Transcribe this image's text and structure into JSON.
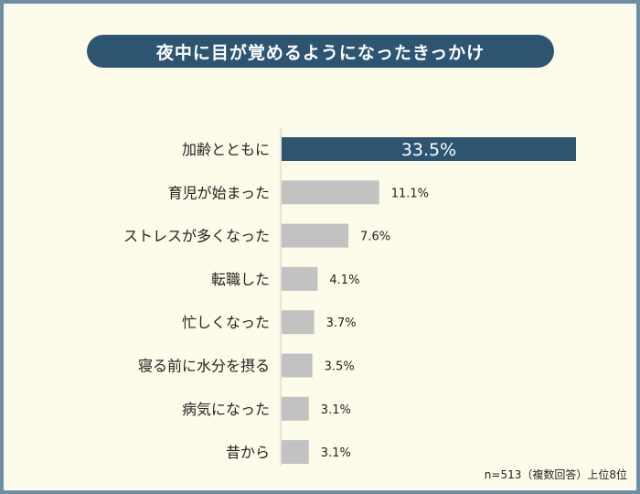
{
  "colors": {
    "accent": "#2d5471",
    "bar": "#c2c2c2",
    "background": "#fdfbe9"
  },
  "note": "n=513（複数回答）上位8位",
  "chart_data": {
    "type": "bar",
    "orientation": "horizontal",
    "title": "夜中に目が覚めるようになったきっかけ",
    "categories": [
      "加齢とともに",
      "育児が始まった",
      "ストレスが多くなった",
      "転職した",
      "忙しくなった",
      "寝る前に水分を摂る",
      "病気になった",
      "昔から"
    ],
    "values": [
      33.5,
      11.1,
      7.6,
      4.1,
      3.7,
      3.5,
      3.1,
      3.1
    ],
    "value_labels": [
      "33.5%",
      "11.1%",
      "7.6%",
      "4.1%",
      "3.7%",
      "3.5%",
      "3.1%",
      "3.1%"
    ],
    "unit": "%",
    "xlim": [
      0,
      33.5
    ],
    "grid": false,
    "legend": "none"
  }
}
